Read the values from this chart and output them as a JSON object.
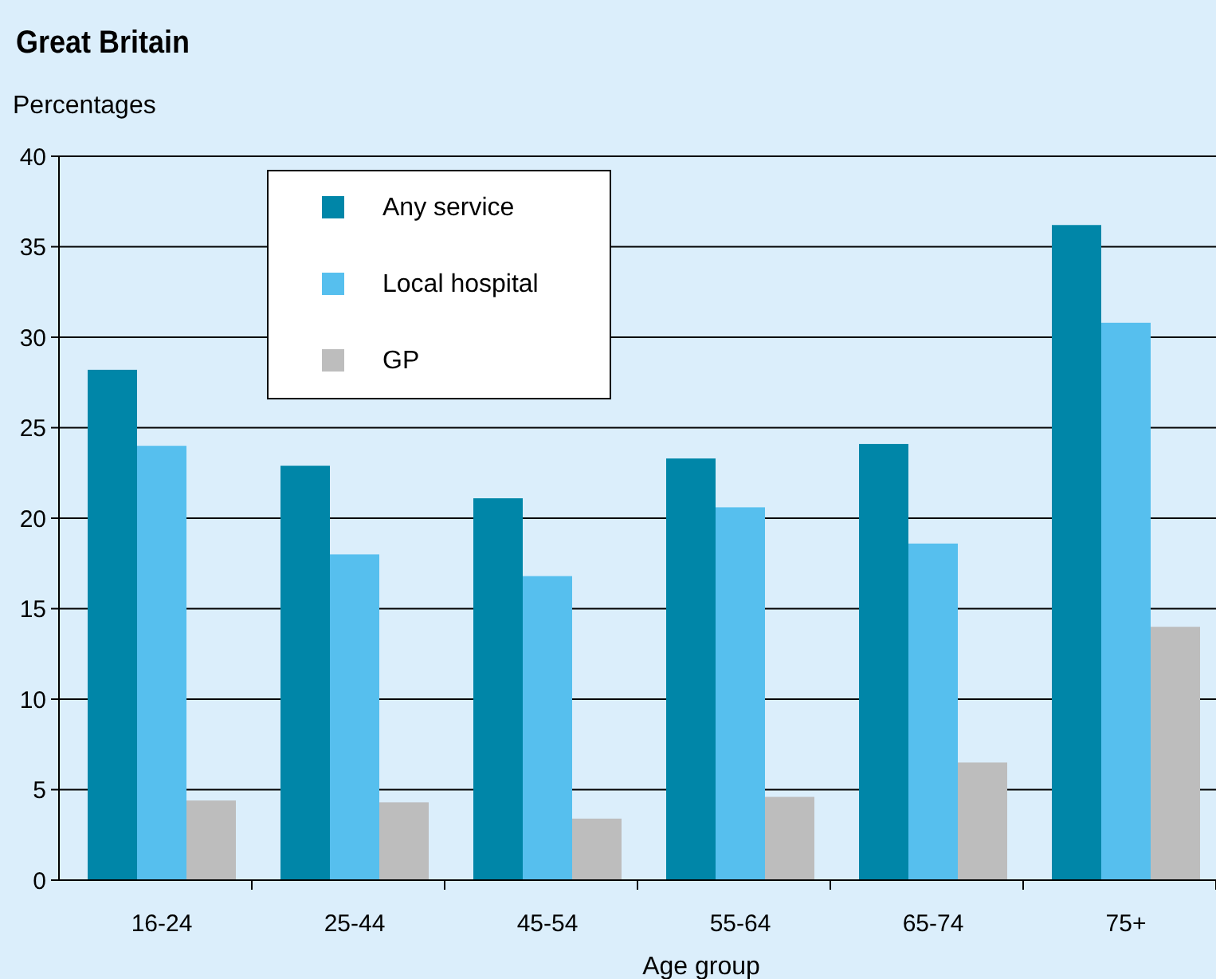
{
  "chart_data": {
    "type": "bar",
    "title": "Great Britain",
    "ylabel": "Percentages",
    "xlabel": "Age group",
    "categories": [
      "16-24",
      "25-44",
      "45-54",
      "55-64",
      "65-74",
      "75+"
    ],
    "series": [
      {
        "name": "Any service",
        "color": "#0086a8",
        "values": [
          28.2,
          22.9,
          21.1,
          23.3,
          24.1,
          36.2
        ]
      },
      {
        "name": "Local hospital",
        "color": "#56bfee",
        "values": [
          24.0,
          18.0,
          16.8,
          20.6,
          18.6,
          30.8
        ]
      },
      {
        "name": "GP",
        "color": "#bdbdbd",
        "values": [
          4.4,
          4.3,
          3.4,
          4.6,
          6.5,
          14.0
        ]
      }
    ],
    "ylim": [
      0,
      40
    ],
    "yticks": [
      0,
      5,
      10,
      15,
      20,
      25,
      30,
      35,
      40
    ],
    "grid": "y",
    "legend": "top left"
  }
}
